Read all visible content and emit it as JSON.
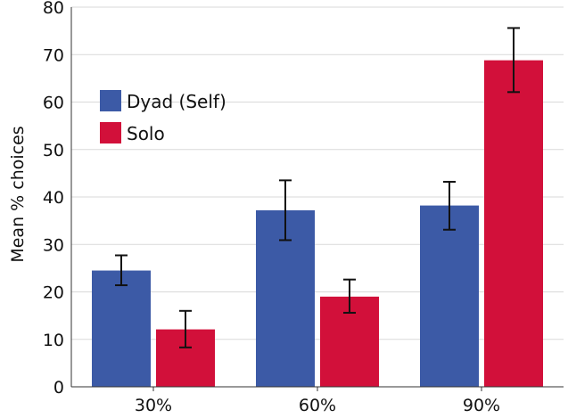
{
  "chart_data": {
    "type": "bar",
    "title": "",
    "xlabel": "",
    "ylabel": "Mean % choices",
    "categories": [
      "30%",
      "60%",
      "90%"
    ],
    "ylim": [
      0,
      80
    ],
    "yticks": [
      0,
      10,
      20,
      30,
      40,
      50,
      60,
      70,
      80
    ],
    "grid": true,
    "legend_position": "top-left",
    "series": [
      {
        "name": "Dyad (Self)",
        "color": "#3c5aa6",
        "values": [
          24.5,
          37.2,
          38.2
        ],
        "error_low": [
          21.4,
          30.9,
          33.1
        ],
        "error_high": [
          27.7,
          43.5,
          43.2
        ]
      },
      {
        "name": "Solo",
        "color": "#d2103a",
        "values": [
          12.1,
          19.0,
          68.8
        ],
        "error_low": [
          8.3,
          15.6,
          62.1
        ],
        "error_high": [
          16.0,
          22.6,
          75.6
        ]
      }
    ]
  }
}
